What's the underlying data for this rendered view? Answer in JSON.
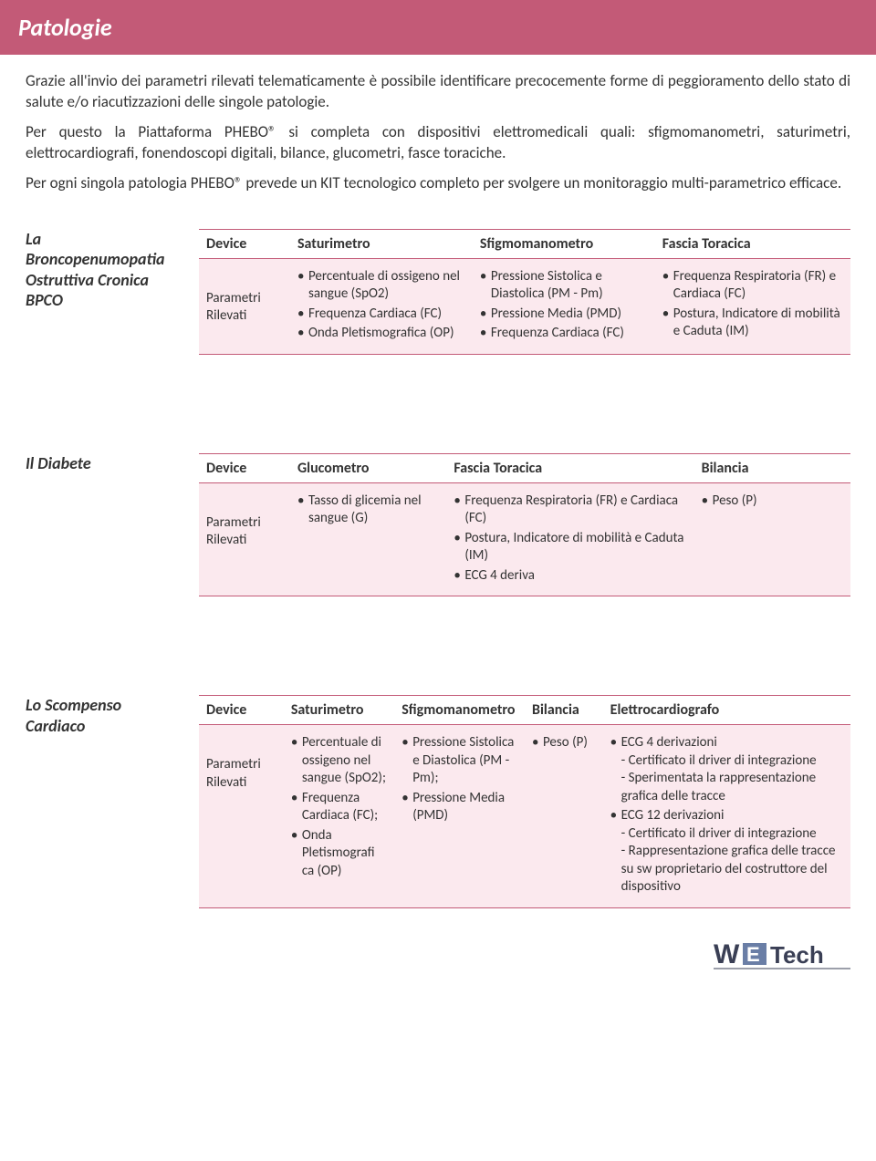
{
  "colors": {
    "header_bg": "#c35a77",
    "header_text": "#ffffff",
    "row_bg": "#fbe9ee",
    "rule": "#c35a77",
    "body_text": "#333333",
    "page_bg": "#ffffff"
  },
  "header": {
    "title": "Patologie"
  },
  "intro": {
    "p1": "Grazie all'invio dei parametri rilevati telematicamente è possibile identificare precocemente forme di peggioramento dello stato di salute e/o riacutizzazioni delle singole patologie.",
    "p2": "Per questo la Piattaforma PHEBO® si completa con dispositivi elettromedicali quali: sfigmomanometri, saturimetri, elettrocardiografi, fonendoscopi digitali, bilance, glucometri, fasce toraciche.",
    "p3": "Per ogni singola patologia PHEBO® prevede un KIT tecnologico completo per svolgere un monitoraggio multi-parametrico efficace."
  },
  "bpco": {
    "title_line1": "La",
    "title_line2": "Broncopenumopatia",
    "title_line3": "Ostruttiva Cronica",
    "title_line4": "BPCO",
    "head": {
      "c0": "Device",
      "c1": "Saturimetro",
      "c2": "Sfigmomanometro",
      "c3": "Fascia Toracica"
    },
    "rowlabel": "Parametri Rilevati",
    "c1": [
      "Percentuale di ossigeno nel sangue (SpO2)",
      "Frequenza Cardiaca (FC)",
      "Onda Pletismografica (OP)"
    ],
    "c2": [
      "Pressione Sistolica e Diastolica (PM - Pm)",
      "Pressione Media (PMD)",
      "Frequenza Cardiaca (FC)"
    ],
    "c3": [
      "Frequenza Respiratoria (FR) e Cardiaca (FC)",
      "Postura, Indicatore di mobilità e Caduta (IM)"
    ]
  },
  "diabete": {
    "title_prefix": "Il ",
    "title_main": "Diabete",
    "head": {
      "c0": "Device",
      "c1": "Glucometro",
      "c2": "Fascia Toracica",
      "c3": "Bilancia"
    },
    "rowlabel": "Parametri Rilevati",
    "c1": [
      "Tasso di glicemia nel sangue (G)"
    ],
    "c2": [
      "Frequenza Respiratoria (FR) e Cardiaca (FC)",
      "Postura, Indicatore di mobilità e Caduta (IM)",
      "ECG 4 deriva"
    ],
    "c3": [
      "Peso (P)"
    ]
  },
  "scompenso": {
    "title_line1": "Lo Scompenso",
    "title_line2": "Cardiaco",
    "head": {
      "c0": "Device",
      "c1": "Saturimetro",
      "c2": "Sfigmomanometro",
      "c3": "Bilancia",
      "c4": "Elettrocardiografo"
    },
    "rowlabel": "Parametri Rilevati",
    "c1": [
      "Percentuale di ossigeno nel sangue (SpO2);",
      "Frequenza Cardiaca (FC);",
      "Onda Pletismografi ca (OP)"
    ],
    "c2": [
      "Pressione Sistolica e Diastolica (PM - Pm);",
      "Pressione Media (PMD)"
    ],
    "c3": [
      "Peso (P)"
    ],
    "c4": [
      "ECG 4 derivazioni\n- Certificato il driver di integrazione\n- Sperimentata la rappresentazione grafica delle tracce",
      "ECG 12 derivazioni\n- Certificato il driver di integrazione\n- Rappresentazione grafica delle tracce su sw proprietario del costruttore del dispositivo"
    ]
  },
  "logo": {
    "text_we": "WE",
    "text_tech": "Tech"
  }
}
